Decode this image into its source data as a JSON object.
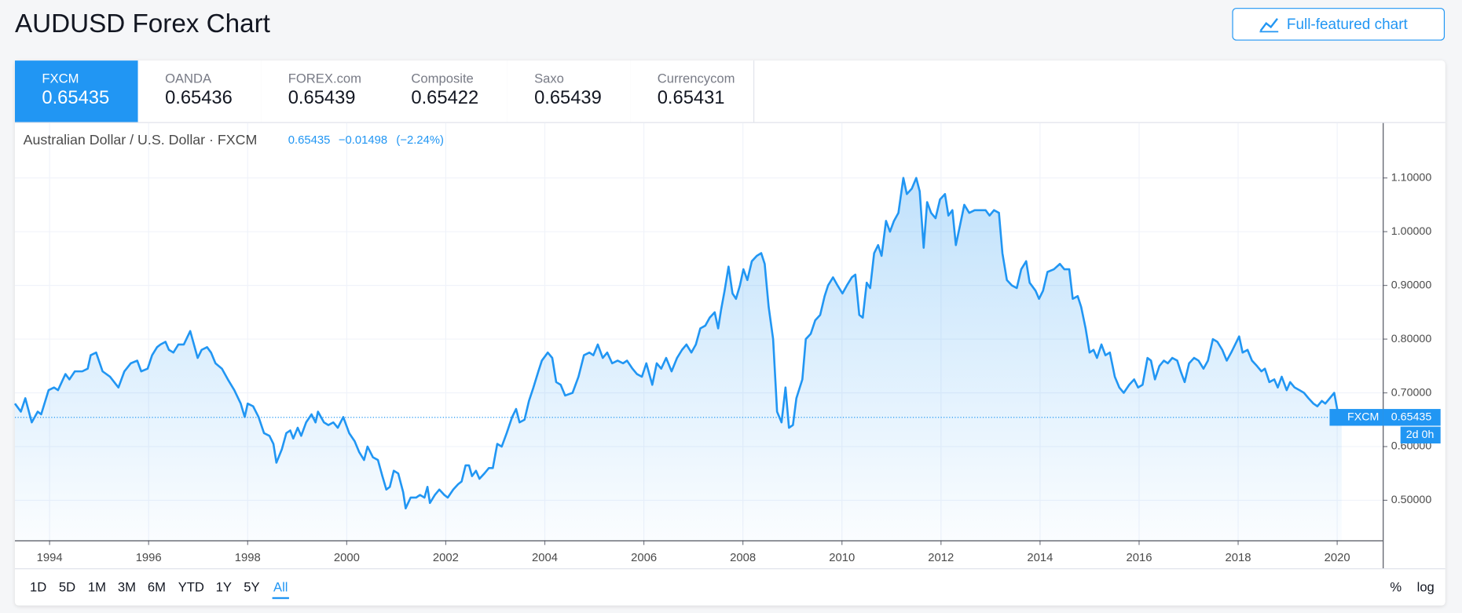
{
  "header": {
    "title": "AUDUSD Forex Chart",
    "button": "Full-featured chart"
  },
  "tabs": [
    {
      "name": "FXCM",
      "price": 0.65435
    },
    {
      "name": "OANDA",
      "price": 0.65436
    },
    {
      "name": "FOREX.com",
      "price": 0.65439
    },
    {
      "name": "Composite",
      "price": 0.65422
    },
    {
      "name": "Saxo",
      "price": 0.65439
    },
    {
      "name": "Currencycom",
      "price": 0.65431
    }
  ],
  "active_tab": 0,
  "chart_data": {
    "type": "line",
    "legend": {
      "symbol": "Australian Dollar / U.S. Dollar · FXCM",
      "price": 0.65435,
      "change": "−0.01498",
      "change_pct": "(−2.24%)"
    },
    "x": [
      1993.3,
      1993.42,
      1993.51,
      1993.64,
      1993.76,
      1993.83,
      1993.98,
      1994.09,
      1994.17,
      1994.32,
      1994.4,
      1994.51,
      1994.66,
      1994.77,
      1994.83,
      1994.94,
      1995.07,
      1995.22,
      1995.39,
      1995.51,
      1995.64,
      1995.77,
      1995.85,
      1995.98,
      1996.07,
      1996.17,
      1996.24,
      1996.34,
      1996.41,
      1996.5,
      1996.6,
      1996.71,
      1996.84,
      1996.99,
      1997.07,
      1997.18,
      1997.26,
      1997.35,
      1997.48,
      1997.6,
      1997.73,
      1997.86,
      1997.94,
      1998.0,
      1998.11,
      1998.22,
      1998.33,
      1998.44,
      1998.52,
      1998.58,
      1998.69,
      1998.78,
      1998.86,
      1998.92,
      1999.01,
      1999.08,
      1999.18,
      1999.29,
      1999.37,
      1999.42,
      1999.54,
      1999.63,
      1999.73,
      1999.82,
      1999.93,
      2000.05,
      2000.16,
      2000.25,
      2000.35,
      2000.42,
      2000.53,
      2000.63,
      2000.72,
      2000.8,
      2000.87,
      2000.95,
      2001.04,
      2001.14,
      2001.19,
      2001.29,
      2001.4,
      2001.48,
      2001.57,
      2001.63,
      2001.68,
      2001.78,
      2001.87,
      2001.97,
      2002.04,
      2002.15,
      2002.25,
      2002.32,
      2002.4,
      2002.47,
      2002.53,
      2002.61,
      2002.68,
      2002.78,
      2002.87,
      2002.95,
      2003.04,
      2003.13,
      2003.23,
      2003.34,
      2003.42,
      2003.49,
      2003.59,
      2003.68,
      2003.77,
      2003.87,
      2003.94,
      2004.06,
      2004.15,
      2004.23,
      2004.32,
      2004.41,
      2004.56,
      2004.68,
      2004.79,
      2004.9,
      2004.98,
      2005.07,
      2005.17,
      2005.26,
      2005.36,
      2005.47,
      2005.58,
      2005.66,
      2005.77,
      2005.86,
      2005.96,
      2006.05,
      2006.17,
      2006.26,
      2006.35,
      2006.45,
      2006.56,
      2006.67,
      2006.77,
      2006.86,
      2006.96,
      2007.05,
      2007.14,
      2007.24,
      2007.33,
      2007.43,
      2007.5,
      2007.56,
      2007.63,
      2007.71,
      2007.79,
      2007.86,
      2007.94,
      2008.01,
      2008.09,
      2008.18,
      2008.28,
      2008.37,
      2008.44,
      2008.52,
      2008.61,
      2008.69,
      2008.78,
      2008.86,
      2008.93,
      2009.01,
      2009.08,
      2009.2,
      2009.27,
      2009.37,
      2009.46,
      2009.56,
      2009.65,
      2009.72,
      2009.82,
      2009.91,
      2010.01,
      2010.1,
      2010.2,
      2010.27,
      2010.35,
      2010.42,
      2010.5,
      2010.57,
      2010.65,
      2010.73,
      2010.8,
      2010.89,
      2010.97,
      2011.05,
      2011.14,
      2011.24,
      2011.31,
      2011.41,
      2011.5,
      2011.57,
      2011.65,
      2011.72,
      2011.8,
      2011.89,
      2011.98,
      2012.08,
      2012.15,
      2012.23,
      2012.3,
      2012.38,
      2012.47,
      2012.57,
      2012.68,
      2012.79,
      2012.9,
      2012.98,
      2013.07,
      2013.17,
      2013.24,
      2013.33,
      2013.43,
      2013.53,
      2013.62,
      2013.72,
      2013.79,
      2013.91,
      2013.98,
      2014.06,
      2014.15,
      2014.28,
      2014.4,
      2014.49,
      2014.59,
      2014.66,
      2014.76,
      2014.83,
      2014.92,
      2015.0,
      2015.08,
      2015.15,
      2015.24,
      2015.32,
      2015.41,
      2015.51,
      2015.6,
      2015.69,
      2015.8,
      2015.9,
      2015.98,
      2016.07,
      2016.17,
      2016.24,
      2016.32,
      2016.41,
      2016.5,
      2016.58,
      2016.67,
      2016.77,
      2016.84,
      2016.92,
      2017.01,
      2017.11,
      2017.2,
      2017.3,
      2017.39,
      2017.49,
      2017.58,
      2017.68,
      2017.77,
      2017.86,
      2017.94,
      2018.02,
      2018.09,
      2018.19,
      2018.28,
      2018.38,
      2018.47,
      2018.54,
      2018.63,
      2018.73,
      2018.8,
      2018.88,
      2018.98,
      2019.05,
      2019.14,
      2019.24,
      2019.33,
      2019.42,
      2019.52,
      2019.6,
      2019.69,
      2019.76,
      2019.85,
      2019.94,
      2020.0,
      2020.09
    ],
    "series": [
      {
        "name": "FXCM",
        "color": "#2196f3",
        "values": [
          0.68,
          0.665,
          0.69,
          0.645,
          0.665,
          0.66,
          0.705,
          0.71,
          0.705,
          0.735,
          0.725,
          0.74,
          0.74,
          0.745,
          0.77,
          0.775,
          0.74,
          0.73,
          0.71,
          0.74,
          0.755,
          0.76,
          0.74,
          0.745,
          0.77,
          0.785,
          0.79,
          0.795,
          0.78,
          0.775,
          0.79,
          0.79,
          0.815,
          0.765,
          0.78,
          0.785,
          0.775,
          0.755,
          0.745,
          0.725,
          0.705,
          0.68,
          0.655,
          0.68,
          0.675,
          0.655,
          0.625,
          0.62,
          0.605,
          0.57,
          0.595,
          0.625,
          0.63,
          0.615,
          0.635,
          0.62,
          0.645,
          0.66,
          0.645,
          0.665,
          0.645,
          0.64,
          0.645,
          0.635,
          0.655,
          0.625,
          0.61,
          0.59,
          0.575,
          0.6,
          0.58,
          0.575,
          0.545,
          0.52,
          0.525,
          0.555,
          0.55,
          0.515,
          0.485,
          0.505,
          0.505,
          0.51,
          0.505,
          0.525,
          0.495,
          0.51,
          0.52,
          0.51,
          0.505,
          0.52,
          0.53,
          0.535,
          0.565,
          0.565,
          0.545,
          0.555,
          0.54,
          0.55,
          0.56,
          0.56,
          0.605,
          0.6,
          0.625,
          0.655,
          0.67,
          0.645,
          0.65,
          0.685,
          0.71,
          0.74,
          0.76,
          0.775,
          0.765,
          0.72,
          0.715,
          0.695,
          0.7,
          0.73,
          0.77,
          0.775,
          0.77,
          0.79,
          0.765,
          0.775,
          0.755,
          0.76,
          0.755,
          0.76,
          0.745,
          0.735,
          0.73,
          0.755,
          0.715,
          0.755,
          0.745,
          0.765,
          0.74,
          0.765,
          0.78,
          0.79,
          0.775,
          0.79,
          0.82,
          0.825,
          0.84,
          0.85,
          0.82,
          0.855,
          0.89,
          0.935,
          0.885,
          0.875,
          0.9,
          0.93,
          0.91,
          0.945,
          0.955,
          0.96,
          0.94,
          0.86,
          0.8,
          0.665,
          0.645,
          0.71,
          0.635,
          0.64,
          0.69,
          0.725,
          0.8,
          0.81,
          0.835,
          0.845,
          0.88,
          0.9,
          0.915,
          0.9,
          0.885,
          0.9,
          0.915,
          0.92,
          0.845,
          0.84,
          0.905,
          0.895,
          0.96,
          0.975,
          0.955,
          1.02,
          1.0,
          1.02,
          1.035,
          1.1,
          1.07,
          1.08,
          1.1,
          1.075,
          0.97,
          1.055,
          1.035,
          1.025,
          1.06,
          1.07,
          1.03,
          1.04,
          0.975,
          1.01,
          1.05,
          1.035,
          1.04,
          1.04,
          1.04,
          1.03,
          1.04,
          1.035,
          0.96,
          0.91,
          0.9,
          0.895,
          0.93,
          0.945,
          0.905,
          0.89,
          0.875,
          0.89,
          0.925,
          0.93,
          0.94,
          0.93,
          0.93,
          0.875,
          0.88,
          0.86,
          0.82,
          0.775,
          0.78,
          0.765,
          0.79,
          0.77,
          0.775,
          0.73,
          0.71,
          0.7,
          0.715,
          0.725,
          0.71,
          0.715,
          0.765,
          0.76,
          0.725,
          0.75,
          0.76,
          0.755,
          0.765,
          0.76,
          0.74,
          0.72,
          0.755,
          0.765,
          0.76,
          0.745,
          0.76,
          0.8,
          0.795,
          0.78,
          0.76,
          0.775,
          0.79,
          0.805,
          0.775,
          0.78,
          0.76,
          0.75,
          0.74,
          0.745,
          0.72,
          0.725,
          0.71,
          0.73,
          0.705,
          0.72,
          0.71,
          0.705,
          0.7,
          0.69,
          0.68,
          0.675,
          0.685,
          0.68,
          0.69,
          0.7,
          0.67,
          0.654
        ]
      }
    ],
    "xlim": [
      1993.3,
      2020.92
    ],
    "xticks": [
      1994,
      1996,
      1998,
      2000,
      2002,
      2004,
      2006,
      2008,
      2010,
      2012,
      2014,
      2016,
      2018,
      2020
    ],
    "ylim": [
      0.4255,
      1.2023
    ],
    "yticks": [
      {
        "value": 0.5,
        "label": "0.50000"
      },
      {
        "value": 0.6,
        "label": "0.60000"
      },
      {
        "value": 0.7,
        "label": "0.70000"
      },
      {
        "value": 0.8,
        "label": "0.80000"
      },
      {
        "value": 0.9,
        "label": "0.90000"
      },
      {
        "value": 1.0,
        "label": "1.00000"
      },
      {
        "value": 1.1,
        "label": "1.10000"
      }
    ],
    "grid": true,
    "last_price": {
      "label": "FXCM",
      "value": 0.65435,
      "countdown": "2d 0h"
    }
  },
  "ranges": [
    "1D",
    "5D",
    "1M",
    "3M",
    "6M",
    "YTD",
    "1Y",
    "5Y",
    "All"
  ],
  "active_range": 8,
  "scale_options": [
    "%",
    "log"
  ]
}
